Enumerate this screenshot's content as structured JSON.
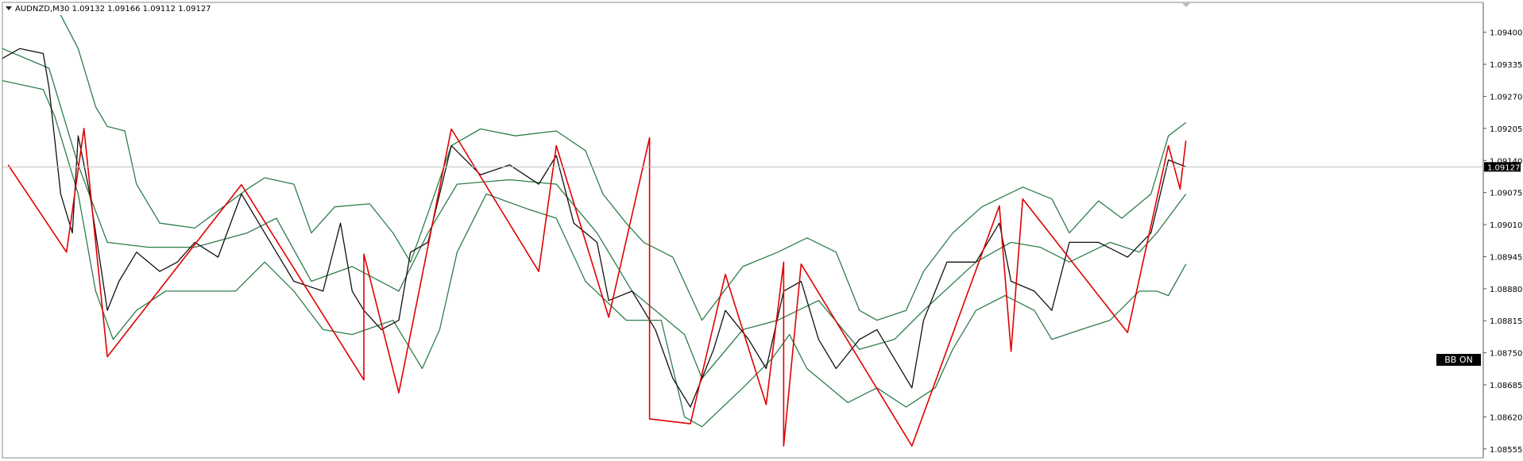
{
  "chart_data": {
    "type": "line",
    "title": "AUDNZD,M30  1.09132 1.09166 1.09112 1.09127",
    "annotation": "BB ON",
    "current_price": 1.09127,
    "xlim": [
      0,
      254
    ],
    "ylim": [
      1.08537,
      1.09459
    ],
    "yticks": [
      {
        "value": 1.094,
        "label": "1.09400"
      },
      1.09335,
      {
        "value": 1.0927,
        "label": "1.09270"
      },
      1.09205,
      {
        "value": 1.0914,
        "label": "1.09140"
      },
      1.09075,
      {
        "value": 1.0901,
        "label": "1.09010"
      },
      1.08945,
      {
        "value": 1.0888,
        "label": "1.08880"
      },
      1.08815,
      {
        "value": 1.0875,
        "label": "1.08750"
      },
      1.08685,
      {
        "value": 1.0862,
        "label": "1.08620"
      },
      1.08555
    ],
    "series": [
      {
        "color": "#2e7d4a",
        "x": [
          10,
          13,
          16,
          18,
          21,
          23,
          27,
          33,
          42,
          45,
          50,
          53,
          57,
          63,
          67,
          70,
          73,
          77,
          82,
          88,
          95,
          100,
          103,
          107,
          110,
          115,
          120,
          127,
          133,
          138,
          143,
          147,
          150,
          155,
          158,
          163,
          168,
          175,
          180,
          183,
          188,
          192,
          197,
          200,
          203
        ],
        "values": [
          1.09435,
          1.09367,
          1.09249,
          1.09209,
          1.092,
          1.09092,
          1.09013,
          1.09003,
          1.09082,
          1.09105,
          1.09092,
          1.08993,
          1.09046,
          1.09052,
          1.08993,
          1.08934,
          1.09033,
          1.0917,
          1.09204,
          1.0919,
          1.092,
          1.0916,
          1.09072,
          1.09013,
          1.08974,
          1.08944,
          1.08816,
          1.08925,
          1.08954,
          1.08983,
          1.08954,
          1.08836,
          1.08816,
          1.08836,
          1.08915,
          1.08993,
          1.09046,
          1.09086,
          1.09062,
          1.08993,
          1.09058,
          1.09023,
          1.09072,
          1.0919,
          1.09217
        ]
      },
      {
        "color": "#2e7d4a",
        "x": [
          0,
          8,
          13,
          18,
          25,
          33,
          42,
          47,
          53,
          60,
          68,
          73,
          78,
          87,
          95,
          102,
          108,
          117,
          120,
          127,
          133,
          140,
          147,
          153,
          158,
          167,
          173,
          178,
          183,
          190,
          195,
          198,
          203
        ],
        "values": [
          1.09367,
          1.09327,
          1.09131,
          1.08974,
          1.08964,
          1.08964,
          1.08993,
          1.09023,
          1.08895,
          1.08925,
          1.08875,
          1.08993,
          1.09092,
          1.09101,
          1.09092,
          1.08993,
          1.08875,
          1.08787,
          1.08698,
          1.08797,
          1.08816,
          1.08856,
          1.08757,
          1.08777,
          1.08836,
          1.08934,
          1.08974,
          1.08964,
          1.08934,
          1.08974,
          1.08954,
          1.08993,
          1.09072
        ]
      },
      {
        "color": "#2e7d4a",
        "x": [
          0,
          7,
          9,
          13,
          16,
          19,
          23,
          28,
          33,
          40,
          45,
          50,
          55,
          60,
          67,
          72,
          75,
          78,
          83,
          90,
          95,
          100,
          107,
          113,
          117,
          120,
          127,
          132,
          135,
          138,
          145,
          150,
          155,
          160,
          163,
          167,
          172,
          177,
          180,
          185,
          190,
          195,
          198,
          200,
          203
        ],
        "values": [
          1.09302,
          1.09284,
          1.09229,
          1.09072,
          1.08875,
          1.08777,
          1.08836,
          1.08875,
          1.08875,
          1.08875,
          1.08934,
          1.08875,
          1.08797,
          1.08787,
          1.08816,
          1.08718,
          1.08797,
          1.08954,
          1.09072,
          1.09042,
          1.09023,
          1.08895,
          1.08816,
          1.08816,
          1.0862,
          1.086,
          1.08679,
          1.08738,
          1.08787,
          1.08718,
          1.08649,
          1.08679,
          1.0864,
          1.08679,
          1.08757,
          1.08836,
          1.08866,
          1.08836,
          1.08777,
          1.08797,
          1.08816,
          1.08875,
          1.08875,
          1.08866,
          1.0893
        ]
      },
      {
        "color": "#111111",
        "x": [
          0,
          3,
          7,
          8,
          10,
          12,
          13,
          15,
          17,
          18,
          20,
          23,
          27,
          30,
          33,
          37,
          41,
          45,
          50,
          55,
          58,
          60,
          62,
          65,
          68,
          70,
          73,
          77,
          82,
          87,
          92,
          95,
          98,
          102,
          104,
          108,
          112,
          115,
          118,
          122,
          124,
          128,
          131,
          134,
          137,
          140,
          143,
          147,
          150,
          156,
          158,
          162,
          167,
          171,
          173,
          177,
          180,
          183,
          188,
          193,
          197,
          200,
          203
        ],
        "values": [
          1.09347,
          1.09367,
          1.09357,
          1.09288,
          1.09072,
          1.08993,
          1.0919,
          1.09072,
          1.08915,
          1.08836,
          1.08895,
          1.08954,
          1.08915,
          1.08934,
          1.08974,
          1.08944,
          1.09072,
          1.08993,
          1.08895,
          1.08875,
          1.09013,
          1.08875,
          1.08836,
          1.08797,
          1.08816,
          1.08954,
          1.08974,
          1.0917,
          1.09111,
          1.09131,
          1.09092,
          1.0915,
          1.09013,
          1.08974,
          1.08856,
          1.08875,
          1.08797,
          1.08698,
          1.0864,
          1.08757,
          1.08836,
          1.08777,
          1.08718,
          1.08875,
          1.08895,
          1.08777,
          1.08718,
          1.08777,
          1.08797,
          1.08679,
          1.08816,
          1.08934,
          1.08934,
          1.09013,
          1.08895,
          1.08875,
          1.08836,
          1.08974,
          1.08974,
          1.08944,
          1.08993,
          1.09141,
          1.09127
        ]
      },
      {
        "color": "#e00000",
        "x": [
          1,
          11,
          14,
          18,
          41,
          62,
          62,
          68,
          77,
          92,
          95,
          104,
          111,
          111,
          118,
          124,
          131,
          134,
          134,
          137,
          156,
          171,
          173,
          175,
          193,
          200,
          202,
          203
        ],
        "values": [
          1.09131,
          1.08954,
          1.09205,
          1.08742,
          1.09091,
          1.08695,
          1.0895,
          1.08669,
          1.09204,
          1.08915,
          1.0917,
          1.08822,
          1.09186,
          1.08616,
          1.08606,
          1.08909,
          1.08645,
          1.08934,
          1.08561,
          1.0893,
          1.08561,
          1.09048,
          1.08753,
          1.09062,
          1.08791,
          1.0917,
          1.09082,
          1.0918
        ]
      }
    ]
  }
}
